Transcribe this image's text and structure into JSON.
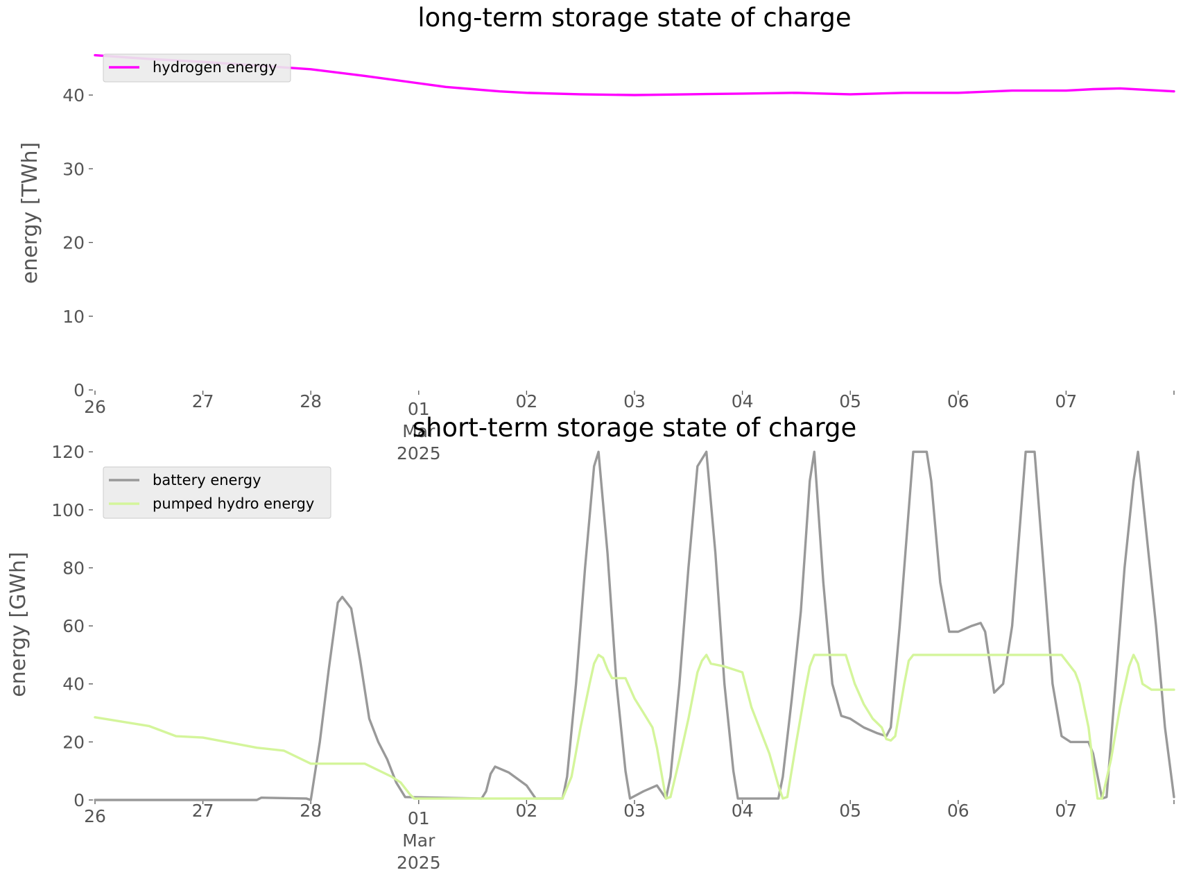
{
  "colors": {
    "hydrogen": "#ff00ff",
    "battery": "#999999",
    "pumped_hydro": "#d4f59b",
    "text": "#555555",
    "legend_bg": "#ebebeb",
    "legend_border": "#cccccc"
  },
  "chart_data": [
    {
      "type": "line",
      "title": "long-term storage state of charge",
      "xlabel": "",
      "ylabel": "energy [TWh]",
      "xlim": [
        "2025-02-26T00:00",
        "2025-03-08T00:00"
      ],
      "ylim": [
        0,
        48
      ],
      "yticks": [
        0,
        10,
        20,
        30,
        40
      ],
      "xtick_labels": [
        {
          "date": "2025-02-26",
          "label": "26"
        },
        {
          "date": "2025-02-27",
          "label": "27"
        },
        {
          "date": "2025-02-28",
          "label": "28"
        },
        {
          "date": "2025-03-01",
          "label": "01",
          "extra": [
            "Mar",
            "2025"
          ]
        },
        {
          "date": "2025-03-02",
          "label": "02"
        },
        {
          "date": "2025-03-03",
          "label": "03"
        },
        {
          "date": "2025-03-04",
          "label": "04"
        },
        {
          "date": "2025-03-05",
          "label": "05"
        },
        {
          "date": "2025-03-06",
          "label": "06"
        },
        {
          "date": "2025-03-07",
          "label": "07"
        }
      ],
      "grid": false,
      "legend": "top-left",
      "series": [
        {
          "name": "hydrogen energy",
          "color": "#ff00ff",
          "points": [
            [
              "2025-02-26T00:00",
              45.4
            ],
            [
              "2025-02-26T12:00",
              44.9
            ],
            [
              "2025-02-27T00:00",
              44.5
            ],
            [
              "2025-02-27T12:00",
              44.0
            ],
            [
              "2025-02-28T00:00",
              43.5
            ],
            [
              "2025-02-28T12:00",
              42.6
            ],
            [
              "2025-03-01T00:00",
              41.6
            ],
            [
              "2025-03-01T06:00",
              41.1
            ],
            [
              "2025-03-01T12:00",
              40.8
            ],
            [
              "2025-03-01T18:00",
              40.5
            ],
            [
              "2025-03-02T00:00",
              40.3
            ],
            [
              "2025-03-02T12:00",
              40.1
            ],
            [
              "2025-03-03T00:00",
              40.0
            ],
            [
              "2025-03-03T12:00",
              40.1
            ],
            [
              "2025-03-04T00:00",
              40.2
            ],
            [
              "2025-03-04T12:00",
              40.3
            ],
            [
              "2025-03-05T00:00",
              40.1
            ],
            [
              "2025-03-05T12:00",
              40.3
            ],
            [
              "2025-03-06T00:00",
              40.3
            ],
            [
              "2025-03-06T12:00",
              40.6
            ],
            [
              "2025-03-07T00:00",
              40.6
            ],
            [
              "2025-03-07T06:00",
              40.8
            ],
            [
              "2025-03-07T12:00",
              40.9
            ],
            [
              "2025-03-07T18:00",
              40.7
            ],
            [
              "2025-03-08T00:00",
              40.5
            ]
          ]
        }
      ]
    },
    {
      "type": "line",
      "title": "short-term storage state of charge",
      "xlabel": "",
      "ylabel": "energy [GWh]",
      "xlim": [
        "2025-02-26T00:00",
        "2025-03-08T00:00"
      ],
      "ylim": [
        0,
        121
      ],
      "yticks": [
        0,
        20,
        40,
        60,
        80,
        100,
        120
      ],
      "xtick_labels": [
        {
          "date": "2025-02-26",
          "label": "26"
        },
        {
          "date": "2025-02-27",
          "label": "27"
        },
        {
          "date": "2025-02-28",
          "label": "28"
        },
        {
          "date": "2025-03-01",
          "label": "01",
          "extra": [
            "Mar",
            "2025"
          ]
        },
        {
          "date": "2025-03-02",
          "label": "02"
        },
        {
          "date": "2025-03-03",
          "label": "03"
        },
        {
          "date": "2025-03-04",
          "label": "04"
        },
        {
          "date": "2025-03-05",
          "label": "05"
        },
        {
          "date": "2025-03-06",
          "label": "06"
        },
        {
          "date": "2025-03-07",
          "label": "07"
        }
      ],
      "grid": false,
      "legend": "top-left",
      "series": [
        {
          "name": "battery energy",
          "color": "#999999",
          "points": [
            [
              "2025-02-26T00:00",
              0
            ],
            [
              "2025-02-27T12:00",
              0
            ],
            [
              "2025-02-27T13:00",
              0.8
            ],
            [
              "2025-02-27T23:00",
              0.5
            ],
            [
              "2025-02-28T00:00",
              0
            ],
            [
              "2025-02-28T02:00",
              20
            ],
            [
              "2025-02-28T04:00",
              45
            ],
            [
              "2025-02-28T06:00",
              68
            ],
            [
              "2025-02-28T07:00",
              70
            ],
            [
              "2025-02-28T09:00",
              66
            ],
            [
              "2025-02-28T11:00",
              48
            ],
            [
              "2025-02-28T13:00",
              28
            ],
            [
              "2025-02-28T15:00",
              20
            ],
            [
              "2025-02-28T17:00",
              14
            ],
            [
              "2025-02-28T19:00",
              6
            ],
            [
              "2025-02-28T21:00",
              1
            ],
            [
              "2025-03-01T14:00",
              0.5
            ],
            [
              "2025-03-01T15:00",
              3
            ],
            [
              "2025-03-01T16:00",
              9
            ],
            [
              "2025-03-01T17:00",
              11.5
            ],
            [
              "2025-03-01T20:00",
              9.5
            ],
            [
              "2025-03-02T00:00",
              5
            ],
            [
              "2025-03-02T02:00",
              0.5
            ],
            [
              "2025-03-02T08:00",
              0.5
            ],
            [
              "2025-03-02T09:00",
              8
            ],
            [
              "2025-03-02T11:00",
              40
            ],
            [
              "2025-03-02T13:00",
              80
            ],
            [
              "2025-03-02T15:00",
              115
            ],
            [
              "2025-03-02T16:00",
              120
            ],
            [
              "2025-03-02T18:00",
              85
            ],
            [
              "2025-03-02T20:00",
              40
            ],
            [
              "2025-03-02T22:00",
              10
            ],
            [
              "2025-03-02T23:00",
              0.5
            ],
            [
              "2025-03-03T02:00",
              3
            ],
            [
              "2025-03-03T05:00",
              5
            ],
            [
              "2025-03-03T07:00",
              0.5
            ],
            [
              "2025-03-03T08:00",
              8
            ],
            [
              "2025-03-03T10:00",
              40
            ],
            [
              "2025-03-03T12:00",
              80
            ],
            [
              "2025-03-03T14:00",
              115
            ],
            [
              "2025-03-03T16:00",
              120
            ],
            [
              "2025-03-03T18:00",
              85
            ],
            [
              "2025-03-03T20:00",
              40
            ],
            [
              "2025-03-03T22:00",
              10
            ],
            [
              "2025-03-03T23:00",
              0.5
            ],
            [
              "2025-03-04T08:00",
              0.5
            ],
            [
              "2025-03-04T09:00",
              8
            ],
            [
              "2025-03-04T11:00",
              35
            ],
            [
              "2025-03-04T13:00",
              65
            ],
            [
              "2025-03-04T15:00",
              110
            ],
            [
              "2025-03-04T16:00",
              120
            ],
            [
              "2025-03-04T18:00",
              75
            ],
            [
              "2025-03-04T20:00",
              40
            ],
            [
              "2025-03-04T22:00",
              29
            ],
            [
              "2025-03-05T00:00",
              28
            ],
            [
              "2025-03-05T03:00",
              25
            ],
            [
              "2025-03-05T06:00",
              23
            ],
            [
              "2025-03-05T08:00",
              22
            ],
            [
              "2025-03-05T09:00",
              25
            ],
            [
              "2025-03-05T11:00",
              60
            ],
            [
              "2025-03-05T13:00",
              100
            ],
            [
              "2025-03-05T14:00",
              120
            ],
            [
              "2025-03-05T17:00",
              120
            ],
            [
              "2025-03-05T18:00",
              110
            ],
            [
              "2025-03-05T20:00",
              75
            ],
            [
              "2025-03-05T22:00",
              58
            ],
            [
              "2025-03-06T00:00",
              58
            ],
            [
              "2025-03-06T03:00",
              60
            ],
            [
              "2025-03-06T05:00",
              61
            ],
            [
              "2025-03-06T06:00",
              58
            ],
            [
              "2025-03-06T08:00",
              37
            ],
            [
              "2025-03-06T10:00",
              40
            ],
            [
              "2025-03-06T12:00",
              60
            ],
            [
              "2025-03-06T14:00",
              100
            ],
            [
              "2025-03-06T15:00",
              120
            ],
            [
              "2025-03-06T17:00",
              120
            ],
            [
              "2025-03-06T19:00",
              80
            ],
            [
              "2025-03-06T21:00",
              40
            ],
            [
              "2025-03-06T23:00",
              22
            ],
            [
              "2025-03-07T01:00",
              20
            ],
            [
              "2025-03-07T05:00",
              20
            ],
            [
              "2025-03-07T06:00",
              16
            ],
            [
              "2025-03-07T08:00",
              0.5
            ],
            [
              "2025-03-07T09:00",
              1
            ],
            [
              "2025-03-07T11:00",
              40
            ],
            [
              "2025-03-07T13:00",
              80
            ],
            [
              "2025-03-07T15:00",
              110
            ],
            [
              "2025-03-07T16:00",
              120
            ],
            [
              "2025-03-07T18:00",
              90
            ],
            [
              "2025-03-07T20:00",
              60
            ],
            [
              "2025-03-07T22:00",
              25
            ],
            [
              "2025-03-08T00:00",
              1
            ]
          ]
        },
        {
          "name": "pumped hydro energy",
          "color": "#d4f59b",
          "points": [
            [
              "2025-02-26T00:00",
              28.5
            ],
            [
              "2025-02-26T12:00",
              25.5
            ],
            [
              "2025-02-26T18:00",
              22
            ],
            [
              "2025-02-27T00:00",
              21.5
            ],
            [
              "2025-02-27T12:00",
              18
            ],
            [
              "2025-02-27T18:00",
              17
            ],
            [
              "2025-02-28T00:00",
              12.5
            ],
            [
              "2025-02-28T12:00",
              12.5
            ],
            [
              "2025-02-28T18:00",
              8
            ],
            [
              "2025-02-28T20:00",
              6
            ],
            [
              "2025-02-28T22:00",
              2
            ],
            [
              "2025-02-28T23:00",
              0.5
            ],
            [
              "2025-03-02T08:00",
              0.5
            ],
            [
              "2025-03-02T10:00",
              8
            ],
            [
              "2025-03-02T12:00",
              25
            ],
            [
              "2025-03-02T14:00",
              40
            ],
            [
              "2025-03-02T15:00",
              47
            ],
            [
              "2025-03-02T16:00",
              50
            ],
            [
              "2025-03-02T17:00",
              49
            ],
            [
              "2025-03-02T18:00",
              45
            ],
            [
              "2025-03-02T19:00",
              42
            ],
            [
              "2025-03-02T22:00",
              42
            ],
            [
              "2025-03-03T00:00",
              35
            ],
            [
              "2025-03-03T02:00",
              30
            ],
            [
              "2025-03-03T04:00",
              25
            ],
            [
              "2025-03-03T05:00",
              18
            ],
            [
              "2025-03-03T07:00",
              0.5
            ],
            [
              "2025-03-03T08:00",
              1
            ],
            [
              "2025-03-03T10:00",
              14
            ],
            [
              "2025-03-03T12:00",
              28
            ],
            [
              "2025-03-03T14:00",
              44
            ],
            [
              "2025-03-03T15:00",
              48
            ],
            [
              "2025-03-03T16:00",
              50
            ],
            [
              "2025-03-03T17:00",
              47
            ],
            [
              "2025-03-03T20:00",
              46
            ],
            [
              "2025-03-04T00:00",
              44
            ],
            [
              "2025-03-04T02:00",
              32
            ],
            [
              "2025-03-04T04:00",
              24
            ],
            [
              "2025-03-04T06:00",
              16
            ],
            [
              "2025-03-04T08:00",
              5
            ],
            [
              "2025-03-04T09:00",
              0.5
            ],
            [
              "2025-03-04T10:00",
              1
            ],
            [
              "2025-03-04T12:00",
              20
            ],
            [
              "2025-03-04T14:00",
              38
            ],
            [
              "2025-03-04T15:00",
              46
            ],
            [
              "2025-03-04T16:00",
              50
            ],
            [
              "2025-03-04T23:00",
              50
            ],
            [
              "2025-03-05T01:00",
              40
            ],
            [
              "2025-03-05T03:00",
              33
            ],
            [
              "2025-03-05T05:00",
              28
            ],
            [
              "2025-03-05T07:00",
              25
            ],
            [
              "2025-03-05T08:00",
              21
            ],
            [
              "2025-03-05T09:00",
              20.5
            ],
            [
              "2025-03-05T10:00",
              22
            ],
            [
              "2025-03-05T12:00",
              40
            ],
            [
              "2025-03-05T13:00",
              48
            ],
            [
              "2025-03-05T14:00",
              50
            ],
            [
              "2025-03-06T23:00",
              50
            ],
            [
              "2025-03-07T02:00",
              44
            ],
            [
              "2025-03-07T03:00",
              40
            ],
            [
              "2025-03-07T05:00",
              25
            ],
            [
              "2025-03-07T06:00",
              12
            ],
            [
              "2025-03-07T07:00",
              0.5
            ],
            [
              "2025-03-07T08:00",
              0.5
            ],
            [
              "2025-03-07T10:00",
              14
            ],
            [
              "2025-03-07T12:00",
              32
            ],
            [
              "2025-03-07T14:00",
              46
            ],
            [
              "2025-03-07T15:00",
              50
            ],
            [
              "2025-03-07T16:00",
              47
            ],
            [
              "2025-03-07T17:00",
              40
            ],
            [
              "2025-03-07T19:00",
              38
            ],
            [
              "2025-03-08T00:00",
              38
            ]
          ]
        }
      ]
    }
  ]
}
